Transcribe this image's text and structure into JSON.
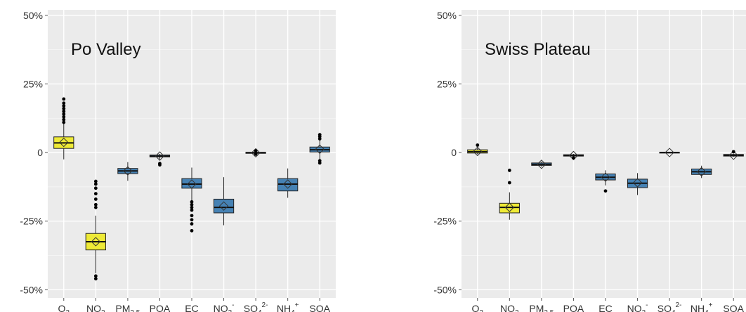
{
  "chart_data": [
    {
      "type": "box",
      "title": "Po Valley",
      "ylim": [
        -0.53,
        0.52
      ],
      "grid": true,
      "yticks": [
        {
          "value": 0.5,
          "label": "50%"
        },
        {
          "value": 0.25,
          "label": "25%"
        },
        {
          "value": 0,
          "label": "0"
        },
        {
          "value": -0.25,
          "label": "-25%"
        },
        {
          "value": -0.5,
          "label": "-50%"
        }
      ],
      "categories": [
        {
          "base": "O",
          "sub": "3",
          "sup": ""
        },
        {
          "base": "NO",
          "sub": "2",
          "sup": ""
        },
        {
          "base": "PM",
          "sub": "2.5",
          "sup": ""
        },
        {
          "base": "POA",
          "sub": "",
          "sup": ""
        },
        {
          "base": "EC",
          "sub": "",
          "sup": ""
        },
        {
          "base": "NO",
          "sub": "3",
          "sup": "-"
        },
        {
          "base": "SO",
          "sub": "4",
          "sup": "2-"
        },
        {
          "base": "NH",
          "sub": "4",
          "sup": "+"
        },
        {
          "base": "SOA",
          "sub": "",
          "sup": ""
        }
      ],
      "boxes": [
        {
          "q1": 0.015,
          "median": 0.035,
          "q3": 0.057,
          "mean": 0.037,
          "wlow": -0.025,
          "whigh": 0.105,
          "outliers": [
            0.11,
            0.12,
            0.13,
            0.14,
            0.15,
            0.16,
            0.17,
            0.18,
            0.195
          ],
          "color": "#eeea36"
        },
        {
          "q1": -0.355,
          "median": -0.325,
          "q3": -0.295,
          "mean": -0.325,
          "wlow": -0.44,
          "whigh": -0.23,
          "outliers": [
            -0.105,
            -0.115,
            -0.13,
            -0.15,
            -0.17,
            -0.19,
            -0.2,
            -0.45,
            -0.46
          ],
          "color": "#eeea36"
        },
        {
          "q1": -0.077,
          "median": -0.067,
          "q3": -0.058,
          "mean": -0.067,
          "wlow": -0.103,
          "whigh": -0.035,
          "outliers": [],
          "color": "#4682b4"
        },
        {
          "q1": -0.016,
          "median": -0.013,
          "q3": -0.009,
          "mean": -0.013,
          "wlow": -0.025,
          "whigh": -0.005,
          "outliers": [
            -0.04,
            -0.045
          ],
          "color": "#4682b4"
        },
        {
          "q1": -0.13,
          "median": -0.115,
          "q3": -0.095,
          "mean": -0.115,
          "wlow": -0.175,
          "whigh": -0.055,
          "outliers": [
            -0.18,
            -0.19,
            -0.2,
            -0.21,
            -0.23,
            -0.245,
            -0.26,
            -0.285
          ],
          "color": "#4682b4"
        },
        {
          "q1": -0.22,
          "median": -0.2,
          "q3": -0.17,
          "mean": -0.195,
          "wlow": -0.265,
          "whigh": -0.09,
          "outliers": [],
          "color": "#4682b4"
        },
        {
          "q1": -0.003,
          "median": -0.001,
          "q3": 0.001,
          "mean": -0.001,
          "wlow": -0.005,
          "whigh": 0.004,
          "outliers": [
            -0.006,
            0.006
          ],
          "color": "#4682b4"
        },
        {
          "q1": -0.14,
          "median": -0.115,
          "q3": -0.095,
          "mean": -0.115,
          "wlow": -0.165,
          "whigh": -0.058,
          "outliers": [],
          "color": "#4682b4"
        },
        {
          "q1": 0.002,
          "median": 0.01,
          "q3": 0.02,
          "mean": 0.012,
          "wlow": -0.025,
          "whigh": 0.045,
          "outliers": [
            -0.03,
            -0.038,
            0.05,
            0.058,
            0.065
          ],
          "color": "#4682b4"
        }
      ]
    },
    {
      "type": "box",
      "title": "Swiss Plateau",
      "ylim": [
        -0.53,
        0.52
      ],
      "grid": true,
      "yticks": [
        {
          "value": 0.5,
          "label": "50%"
        },
        {
          "value": 0.25,
          "label": "25%"
        },
        {
          "value": 0,
          "label": "0"
        },
        {
          "value": -0.25,
          "label": "-25%"
        },
        {
          "value": -0.5,
          "label": "-50%"
        }
      ],
      "categories": [
        {
          "base": "O",
          "sub": "3",
          "sup": ""
        },
        {
          "base": "NO",
          "sub": "2",
          "sup": ""
        },
        {
          "base": "PM",
          "sub": "2.5",
          "sup": ""
        },
        {
          "base": "POA",
          "sub": "",
          "sup": ""
        },
        {
          "base": "EC",
          "sub": "",
          "sup": ""
        },
        {
          "base": "NO",
          "sub": "3",
          "sup": "-"
        },
        {
          "base": "SO",
          "sub": "4",
          "sup": "2-"
        },
        {
          "base": "NH",
          "sub": "4",
          "sup": "+"
        },
        {
          "base": "SOA",
          "sub": "",
          "sup": ""
        }
      ],
      "boxes": [
        {
          "q1": -0.002,
          "median": 0.003,
          "q3": 0.01,
          "mean": 0.004,
          "wlow": -0.006,
          "whigh": 0.02,
          "outliers": [
            0.027
          ],
          "color": "#eeea36"
        },
        {
          "q1": -0.22,
          "median": -0.2,
          "q3": -0.185,
          "mean": -0.2,
          "wlow": -0.245,
          "whigh": -0.145,
          "outliers": [
            -0.065,
            -0.11
          ],
          "color": "#eeea36"
        },
        {
          "q1": -0.047,
          "median": -0.043,
          "q3": -0.038,
          "mean": -0.043,
          "wlow": -0.052,
          "whigh": -0.033,
          "outliers": [],
          "color": "#4682b4"
        },
        {
          "q1": -0.013,
          "median": -0.011,
          "q3": -0.008,
          "mean": -0.011,
          "wlow": -0.018,
          "whigh": -0.005,
          "outliers": [
            -0.02
          ],
          "color": "#4682b4"
        },
        {
          "q1": -0.1,
          "median": -0.09,
          "q3": -0.078,
          "mean": -0.09,
          "wlow": -0.12,
          "whigh": -0.065,
          "outliers": [
            -0.14
          ],
          "color": "#4682b4"
        },
        {
          "q1": -0.128,
          "median": -0.112,
          "q3": -0.097,
          "mean": -0.11,
          "wlow": -0.155,
          "whigh": -0.075,
          "outliers": [],
          "color": "#4682b4"
        },
        {
          "q1": -0.002,
          "median": 0.0,
          "q3": 0.001,
          "mean": 0.0,
          "wlow": -0.003,
          "whigh": 0.003,
          "outliers": [],
          "color": "#4682b4"
        },
        {
          "q1": -0.08,
          "median": -0.07,
          "q3": -0.06,
          "mean": -0.07,
          "wlow": -0.093,
          "whigh": -0.048,
          "outliers": [],
          "color": "#4682b4"
        },
        {
          "q1": -0.013,
          "median": -0.01,
          "q3": -0.007,
          "mean": -0.01,
          "wlow": -0.016,
          "whigh": -0.004,
          "outliers": [
            0.003
          ],
          "color": "#4682b4"
        }
      ]
    }
  ]
}
